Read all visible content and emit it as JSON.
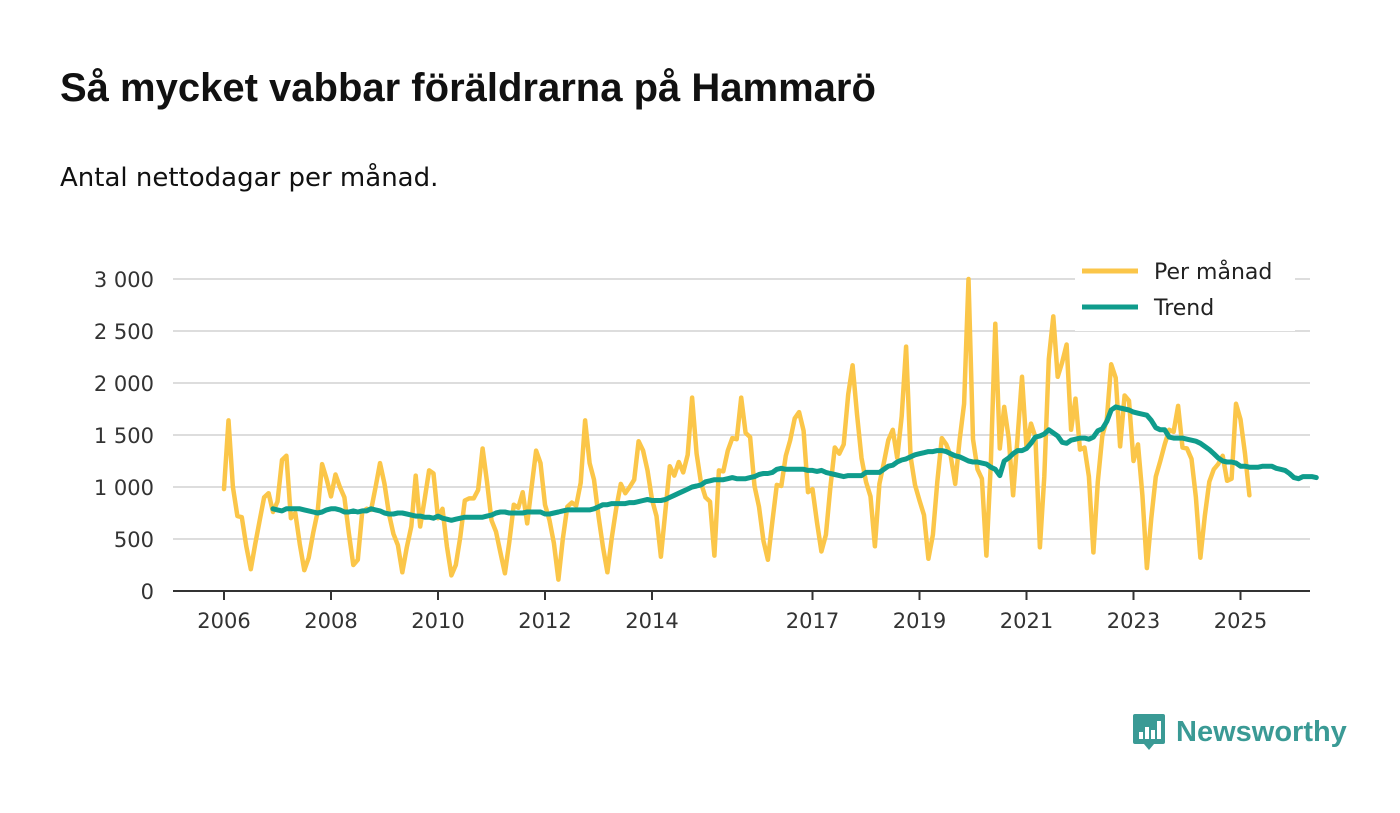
{
  "header": {
    "title": "Så mycket vabbar föräldrarna på Hammarö",
    "subtitle": "Antal nettodagar per månad."
  },
  "brand": {
    "name": "Newsworthy",
    "icon": "newsworthy-logo-icon",
    "color": "#3a9a95"
  },
  "colors": {
    "monthly": "#fbc649",
    "trend": "#0f9c8c",
    "grid": "#dddddd",
    "axis": "#333333"
  },
  "chart_data": {
    "type": "line",
    "title": "Så mycket vabbar föräldrarna på Hammarö",
    "subtitle": "Antal nettodagar per månad.",
    "xlabel": "",
    "ylabel": "",
    "x_start": "2006-01",
    "ylim": [
      0,
      3000
    ],
    "yticks": [
      0,
      500,
      1000,
      1500,
      2000,
      2500,
      3000
    ],
    "ytick_labels": [
      "0",
      "500",
      "1 000",
      "1 500",
      "2 000",
      "2 500",
      "3 000"
    ],
    "xticks": [
      2006,
      2008,
      2010,
      2012,
      2014,
      2017,
      2019,
      2021,
      2023,
      2025
    ],
    "xtick_labels": [
      "2006",
      "2008",
      "2010",
      "2012",
      "2014",
      "2017",
      "2019",
      "2021",
      "2023",
      "2025"
    ],
    "grid": true,
    "legend": "top-right",
    "series": [
      {
        "name": "Per månad",
        "color": "#fbc649",
        "start_index": 0,
        "values": [
          980,
          1640,
          1000,
          720,
          710,
          430,
          210,
          450,
          680,
          900,
          940,
          760,
          860,
          1260,
          1300,
          700,
          750,
          450,
          200,
          320,
          560,
          760,
          1220,
          1080,
          910,
          1120,
          1000,
          900,
          560,
          250,
          300,
          760,
          790,
          780,
          1000,
          1230,
          1030,
          740,
          550,
          440,
          180,
          420,
          620,
          1110,
          620,
          880,
          1160,
          1130,
          700,
          790,
          430,
          150,
          250,
          520,
          870,
          890,
          890,
          970,
          1370,
          1050,
          680,
          570,
          370,
          170,
          470,
          830,
          800,
          950,
          650,
          1000,
          1350,
          1230,
          830,
          680,
          460,
          110,
          500,
          810,
          850,
          820,
          1040,
          1640,
          1230,
          1070,
          720,
          420,
          180,
          520,
          800,
          1030,
          940,
          1000,
          1070,
          1440,
          1350,
          1160,
          880,
          720,
          330,
          770,
          1200,
          1110,
          1240,
          1140,
          1310,
          1860,
          1320,
          1040,
          900,
          860,
          340,
          1160,
          1150,
          1350,
          1470,
          1460,
          1860,
          1520,
          1480,
          1010,
          810,
          480,
          300,
          670,
          1020,
          1010,
          1300,
          1450,
          1660,
          1720,
          1540,
          950,
          980,
          660,
          380,
          540,
          990,
          1380,
          1320,
          1410,
          1890,
          2170,
          1690,
          1280,
          1050,
          910,
          430,
          1030,
          1230,
          1450,
          1550,
          1280,
          1680,
          2350,
          1290,
          1020,
          870,
          730,
          310,
          540,
          1050,
          1470,
          1410,
          1300,
          1030,
          1450,
          1800,
          3000,
          1460,
          1170,
          1080,
          340,
          1220,
          2570,
          1370,
          1770,
          1470,
          920,
          1480,
          2060,
          1380,
          1610,
          1480,
          420,
          1100,
          2230,
          2640,
          2060,
          2200,
          2370,
          1550,
          1850,
          1360,
          1380,
          1100,
          370,
          1050,
          1490,
          1650,
          2180,
          2050,
          1390,
          1880,
          1830,
          1250,
          1410,
          920,
          220,
          700,
          1100,
          1250,
          1410,
          1550,
          1530,
          1780,
          1380,
          1370,
          1270,
          900,
          320,
          720,
          1050,
          1170,
          1220,
          1300,
          1060,
          1080,
          1800,
          1650,
          1320,
          920
        ]
      },
      {
        "name": "Trend",
        "color": "#0f9c8c",
        "start_index": 11,
        "values": [
          790,
          780,
          770,
          790,
          790,
          790,
          790,
          780,
          770,
          760,
          750,
          760,
          780,
          790,
          790,
          780,
          760,
          760,
          770,
          760,
          770,
          770,
          790,
          780,
          770,
          750,
          740,
          740,
          750,
          750,
          740,
          730,
          720,
          720,
          710,
          710,
          700,
          720,
          700,
          690,
          680,
          690,
          700,
          710,
          710,
          710,
          710,
          710,
          720,
          730,
          750,
          760,
          760,
          750,
          750,
          750,
          750,
          760,
          760,
          760,
          760,
          740,
          740,
          750,
          760,
          770,
          780,
          780,
          780,
          780,
          780,
          780,
          790,
          810,
          830,
          830,
          840,
          840,
          840,
          840,
          850,
          850,
          860,
          870,
          880,
          870,
          870,
          870,
          880,
          900,
          920,
          940,
          960,
          980,
          1000,
          1010,
          1020,
          1050,
          1060,
          1070,
          1070,
          1070,
          1080,
          1090,
          1080,
          1080,
          1080,
          1090,
          1100,
          1120,
          1130,
          1130,
          1140,
          1170,
          1180,
          1170,
          1170,
          1170,
          1170,
          1170,
          1160,
          1160,
          1150,
          1160,
          1140,
          1130,
          1120,
          1110,
          1100,
          1110,
          1110,
          1110,
          1110,
          1140,
          1140,
          1140,
          1140,
          1170,
          1200,
          1210,
          1240,
          1260,
          1270,
          1290,
          1310,
          1320,
          1330,
          1340,
          1340,
          1350,
          1350,
          1340,
          1320,
          1300,
          1290,
          1270,
          1250,
          1240,
          1240,
          1230,
          1220,
          1190,
          1170,
          1110,
          1250,
          1280,
          1320,
          1350,
          1350,
          1370,
          1420,
          1480,
          1490,
          1510,
          1550,
          1520,
          1490,
          1430,
          1420,
          1450,
          1460,
          1470,
          1470,
          1460,
          1480,
          1540,
          1560,
          1630,
          1740,
          1770,
          1760,
          1750,
          1740,
          1720,
          1710,
          1700,
          1690,
          1640,
          1570,
          1550,
          1550,
          1480,
          1470,
          1470,
          1470,
          1460,
          1450,
          1440,
          1420,
          1390,
          1360,
          1320,
          1280,
          1250,
          1240,
          1240,
          1230,
          1200,
          1200,
          1190,
          1190,
          1190,
          1200,
          1200,
          1200,
          1180,
          1170,
          1160,
          1130,
          1090,
          1080,
          1100,
          1100,
          1100,
          1090
        ]
      }
    ]
  }
}
